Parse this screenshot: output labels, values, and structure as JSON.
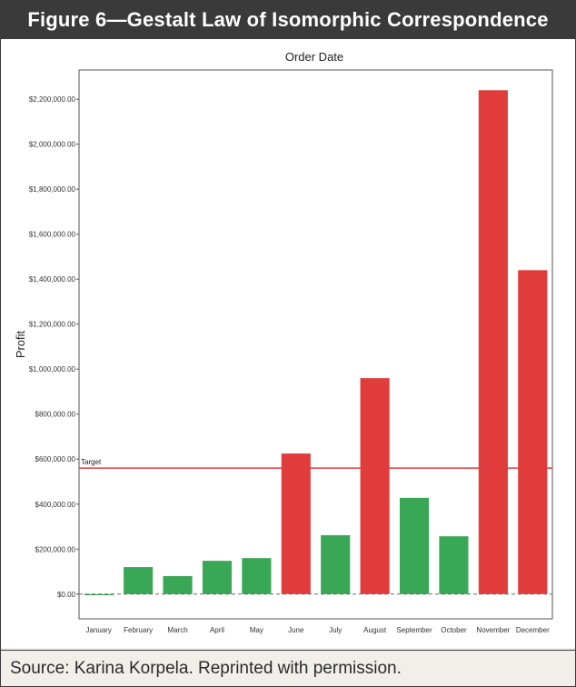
{
  "figure": {
    "title": "Figure 6—Gestalt Law of Isomorphic Correspondence",
    "source": "Source:  Karina Korpela. Reprinted with permission."
  },
  "chart_data": {
    "type": "bar",
    "title": "Order Date",
    "xlabel": "",
    "ylabel": "Profit",
    "categories": [
      "January",
      "February",
      "March",
      "April",
      "May",
      "June",
      "July",
      "August",
      "September",
      "October",
      "November",
      "December"
    ],
    "values": [
      -5000,
      120000,
      80000,
      148000,
      160000,
      625000,
      262000,
      960000,
      428000,
      257000,
      2240000,
      1440000
    ],
    "bar_colors": [
      "#3aa757",
      "#3aa757",
      "#3aa757",
      "#3aa757",
      "#3aa757",
      "#e03c3c",
      "#3aa757",
      "#e03c3c",
      "#3aa757",
      "#3aa757",
      "#e03c3c",
      "#e03c3c"
    ],
    "yticks": [
      "$0.00",
      "$200,000.00",
      "$400,000.00",
      "$600,000.00",
      "$800,000.00",
      "$1,000,000.00",
      "$1,200,000.00",
      "$1,400,000.00",
      "$1,600,000.00",
      "$1,800,000.00",
      "$2,000,000.00",
      "$2,200,000.00"
    ],
    "ytick_values": [
      0,
      200000,
      400000,
      600000,
      800000,
      1000000,
      1200000,
      1400000,
      1600000,
      1800000,
      2000000,
      2200000
    ],
    "ylim": [
      -110000,
      2330000
    ],
    "target": {
      "label": "Target",
      "value": 560000,
      "color": "#e03c3c"
    },
    "grid": false,
    "colors": {
      "green": "#3aa757",
      "red": "#e03c3c"
    }
  }
}
